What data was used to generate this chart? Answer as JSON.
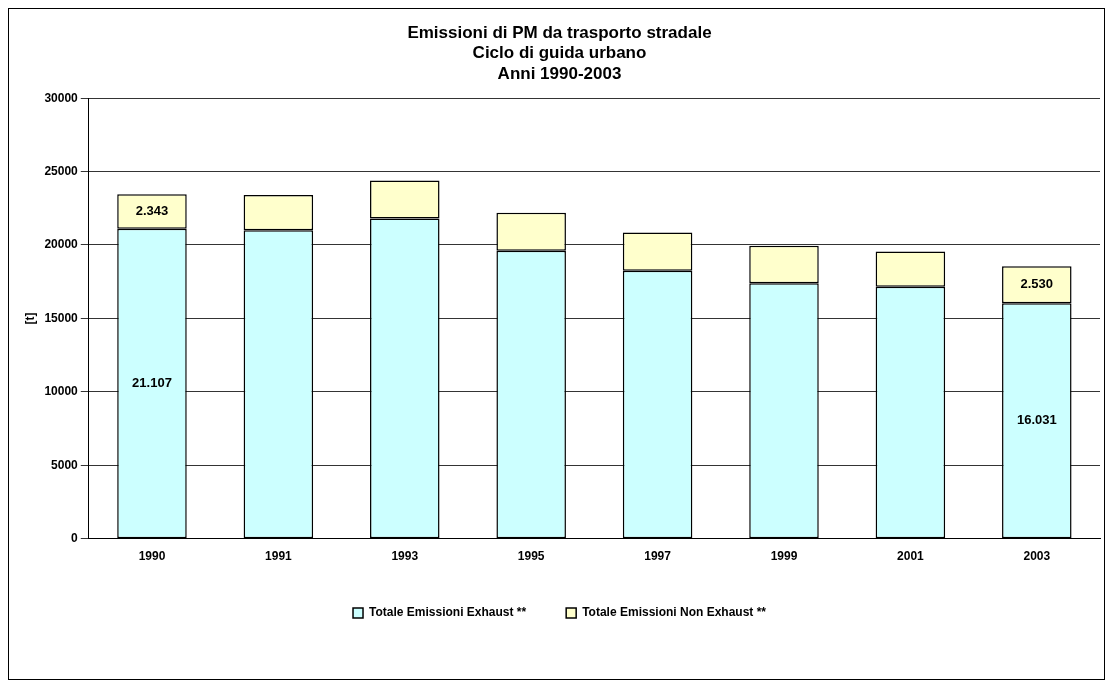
{
  "chart_data": {
    "type": "bar",
    "title": "Emissioni di PM da trasporto stradale\nCiclo di guida urbano\nAnni 1990-2003",
    "ylabel": "[t]",
    "categories": [
      "1990",
      "1991",
      "1993",
      "1995",
      "1997",
      "1999",
      "2001",
      "2003"
    ],
    "stacked": true,
    "series": [
      {
        "name": "Totale Emissioni Exhaust **",
        "color": "#ccffff",
        "values": [
          21107,
          21000,
          21800,
          19600,
          18250,
          17400,
          17150,
          16031
        ],
        "value_labels": [
          "21.107",
          null,
          null,
          null,
          null,
          null,
          null,
          "16.031"
        ]
      },
      {
        "name": "Totale Emissioni Non Exhaust **",
        "color": "#ffffcc",
        "values": [
          2343,
          2400,
          2600,
          2600,
          2600,
          2550,
          2400,
          2530
        ],
        "value_labels": [
          "2.343",
          null,
          null,
          null,
          null,
          null,
          null,
          "2.530"
        ]
      }
    ],
    "ylim": [
      0,
      30000
    ],
    "yticks": [
      0,
      5000,
      10000,
      15000,
      20000,
      25000,
      30000
    ],
    "grid": "y",
    "legend": "bottom"
  }
}
